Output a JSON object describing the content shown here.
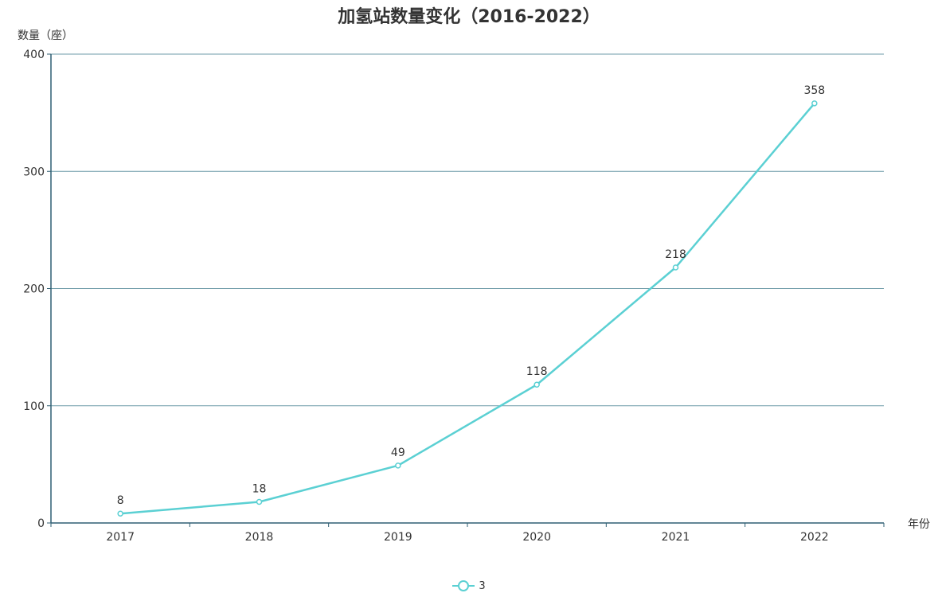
{
  "colors": {
    "series": "#5bd0d3",
    "axis": "#2f5f73",
    "grid": "#6e9ba8",
    "text": "#333333"
  },
  "chart_data": {
    "type": "line",
    "title": "加氢站数量变化（2016-2022）",
    "xlabel": "年份",
    "ylabel": "数量（座）",
    "categories": [
      "2017",
      "2018",
      "2019",
      "2020",
      "2021",
      "2022"
    ],
    "series": [
      {
        "name": "3",
        "values": [
          8,
          18,
          49,
          118,
          218,
          358
        ]
      }
    ],
    "ylim": [
      0,
      400
    ],
    "yticks": [
      0,
      100,
      200,
      300,
      400
    ],
    "grid": true,
    "legend": "bottom-center",
    "data_labels": true
  }
}
